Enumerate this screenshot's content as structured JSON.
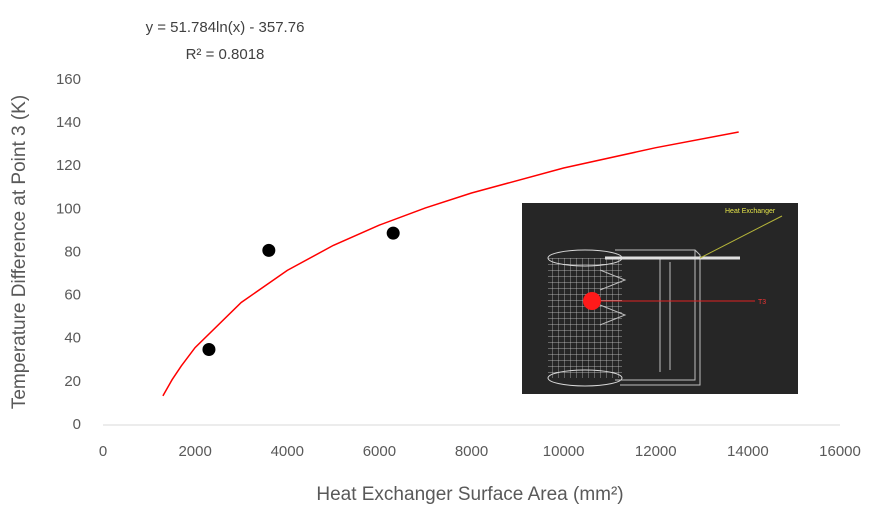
{
  "chart_data": {
    "type": "scatter",
    "x_label": "Heat Exchanger Surface Area (mm²)",
    "y_label": "Temperature Difference at Point 3 (K)",
    "annotations": [
      "y = 51.784ln(x) - 357.76",
      "R² = 0.8018"
    ],
    "inset_labels": [
      "Heat Exchanger",
      "T3"
    ],
    "series": [
      {
        "color": "#000000",
        "x": [
          2300,
          3600,
          6300
        ],
        "values": [
          35,
          81,
          89
        ]
      },
      {
        "type": "line",
        "color": "#ff0000",
        "x": [
          1300,
          1500,
          1700,
          2000,
          3000,
          4000,
          5000,
          6000,
          7000,
          8000,
          10000,
          12000,
          13800
        ],
        "values": [
          13.5,
          21.0,
          27.4,
          35.9,
          56.8,
          71.7,
          83.3,
          92.7,
          100.7,
          107.6,
          119.2,
          128.6,
          135.9
        ]
      }
    ],
    "xlim": [
      0,
      16000
    ],
    "xticks": [
      0,
      2000,
      4000,
      6000,
      8000,
      10000,
      12000,
      14000,
      16000
    ],
    "ylim": [
      0,
      160
    ],
    "yticks": [
      0,
      20,
      40,
      60,
      80,
      100,
      120,
      140,
      160
    ],
    "grid": false
  }
}
